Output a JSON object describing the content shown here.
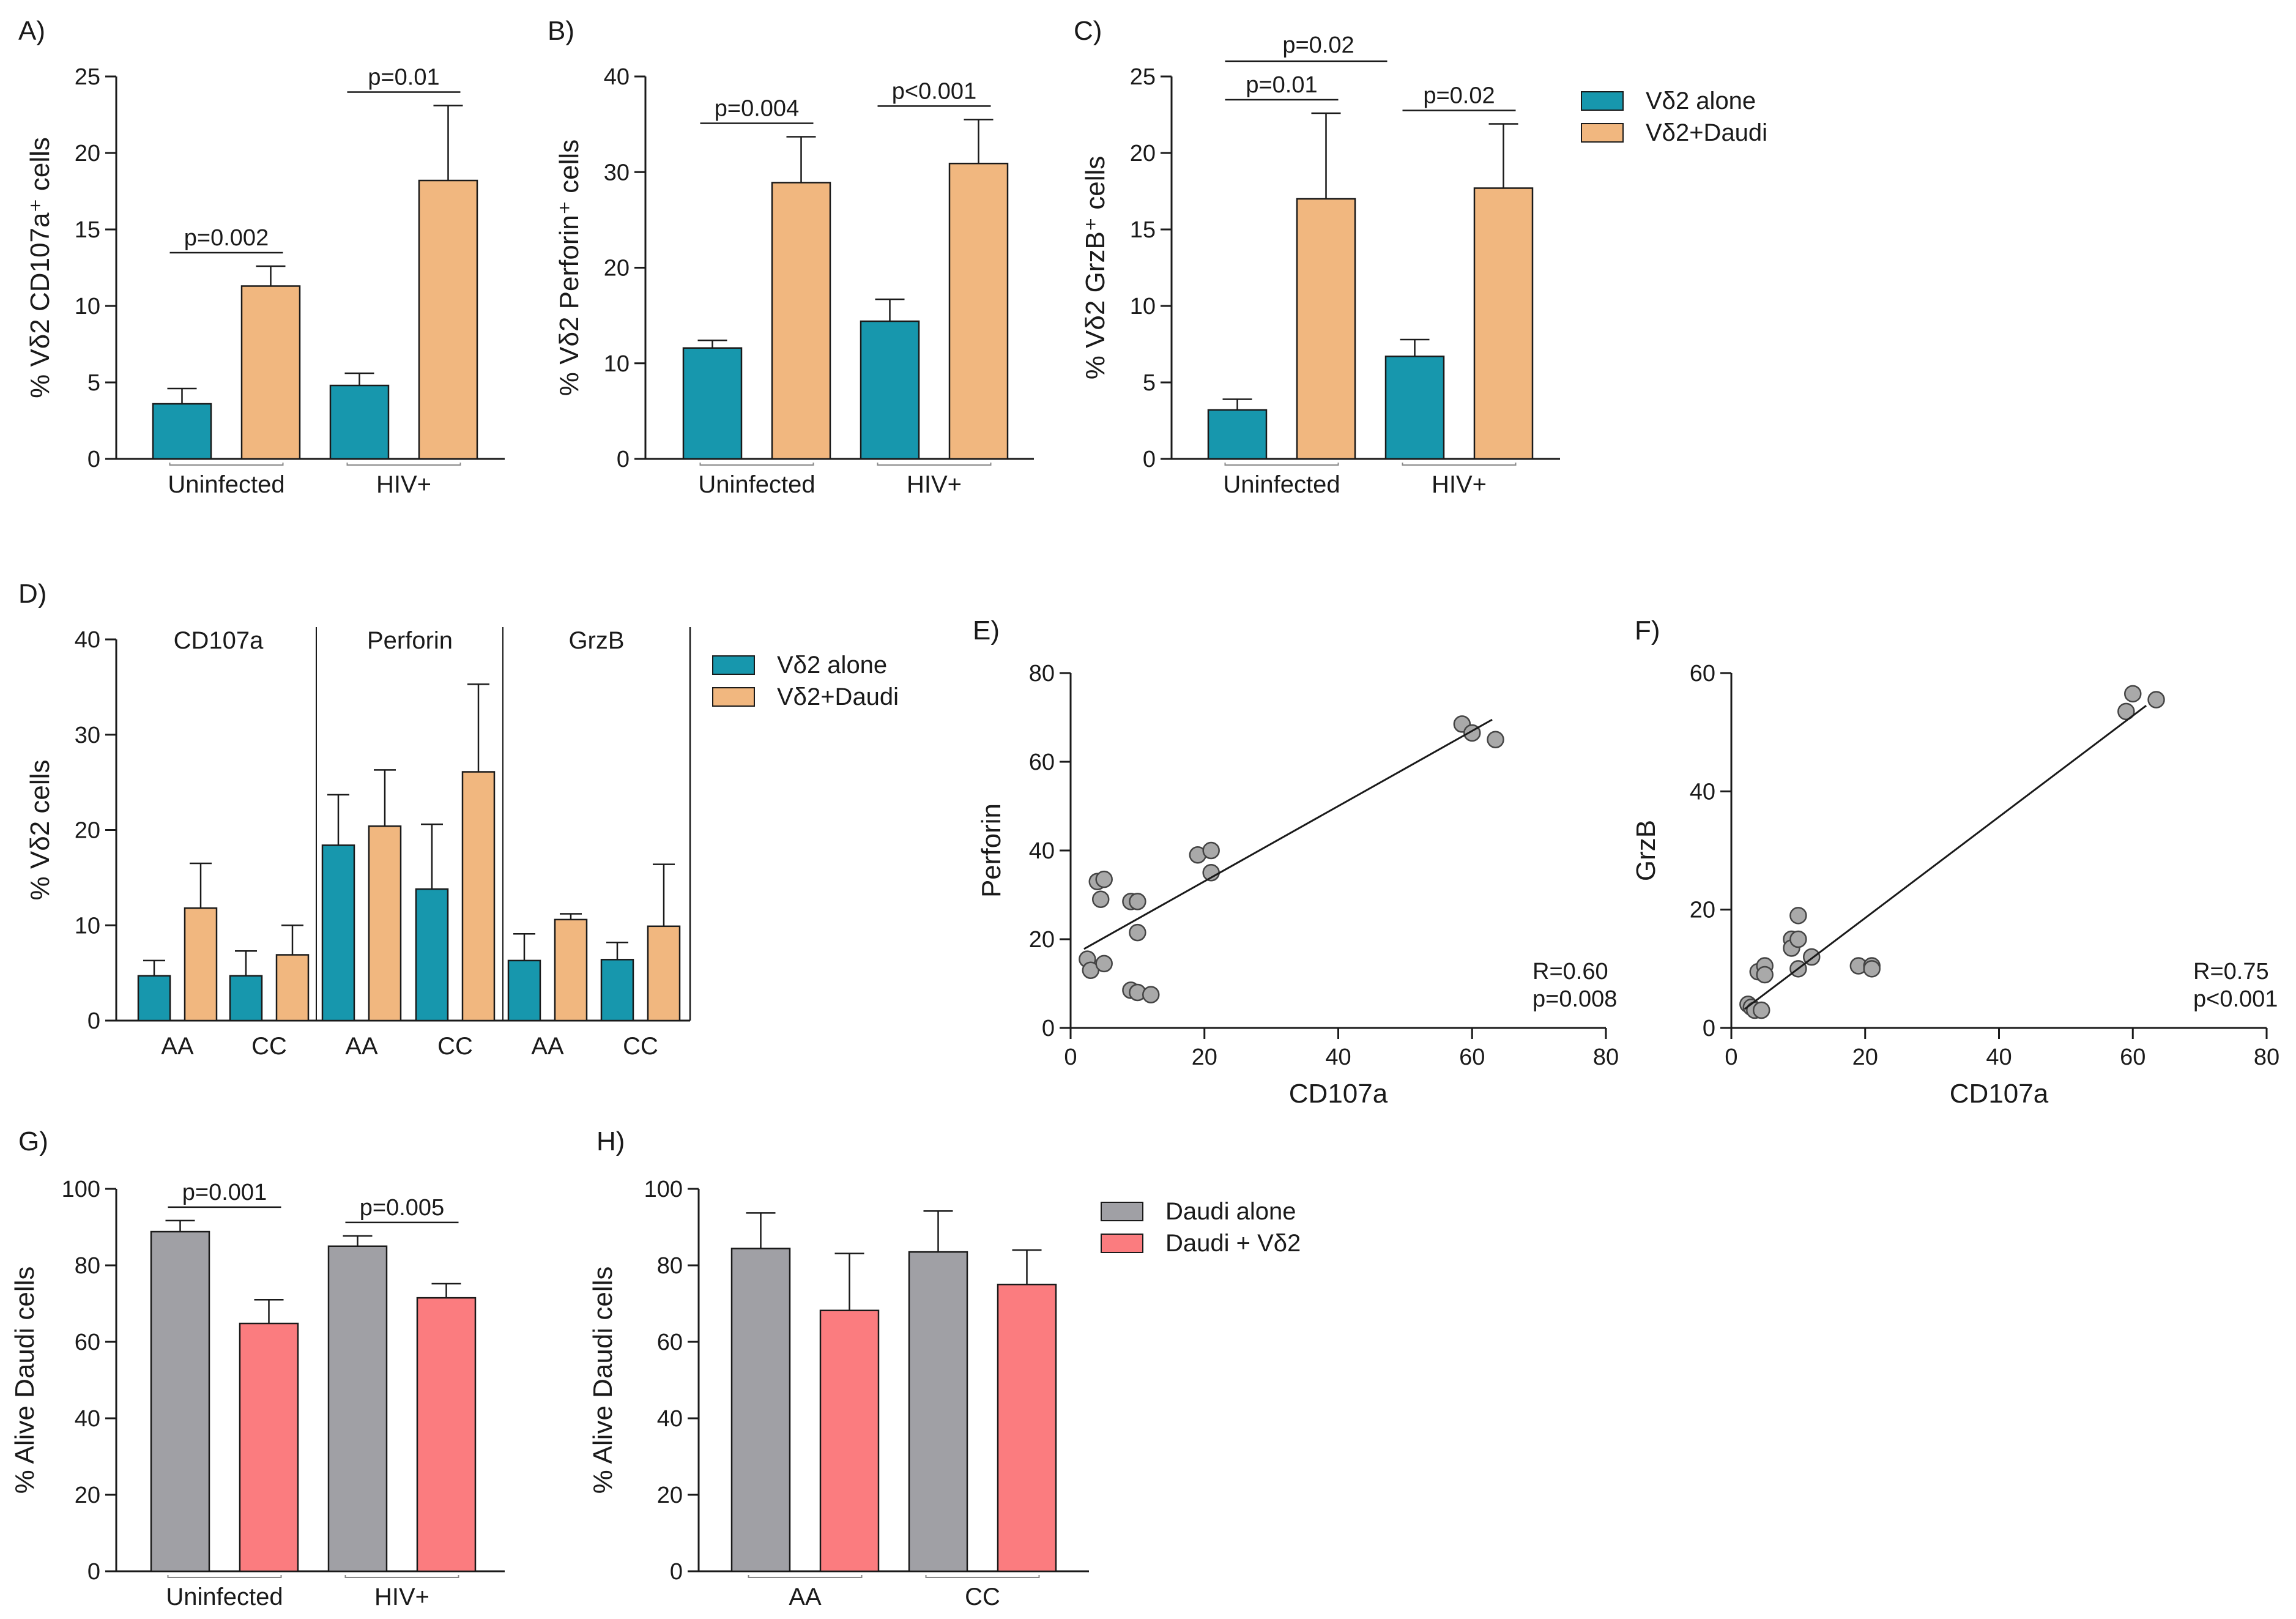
{
  "colors": {
    "teal": "#1797ad",
    "peach": "#f1b77f",
    "gray": "#a0a0a5",
    "salmon": "#fb7c7f",
    "dot": "#a9a9a9",
    "ink": "#1a1a1a"
  },
  "legend_top": [
    "Vδ2 alone",
    "Vδ2+Daudi"
  ],
  "legend_d": [
    "Vδ2 alone",
    "Vδ2+Daudi"
  ],
  "legend_g": [
    "Daudi alone",
    "Daudi + Vδ2"
  ],
  "chart_data": [
    {
      "id": "A",
      "panel": "A)",
      "type": "bar",
      "ylabel": "% Vδ2 CD107a⁺ cells",
      "ylim": [
        0,
        25
      ],
      "yticks": [
        0,
        5,
        10,
        15,
        20,
        25
      ],
      "categories": [
        "Uninfected",
        "HIV+"
      ],
      "series": [
        {
          "name": "Vδ2 alone",
          "color": "teal",
          "values": [
            3.6,
            4.8
          ],
          "errors": [
            1.0,
            0.8
          ]
        },
        {
          "name": "Vδ2+Daudi",
          "color": "peach",
          "values": [
            11.3,
            18.2
          ],
          "errors": [
            1.3,
            4.9
          ]
        }
      ],
      "pvalues": [
        {
          "group": 0,
          "text": "p=0.002"
        },
        {
          "group": 1,
          "text": "p=0.01"
        }
      ]
    },
    {
      "id": "B",
      "panel": "B)",
      "type": "bar",
      "ylabel": "% Vδ2 Perforin⁺ cells",
      "ylim": [
        0,
        40
      ],
      "yticks": [
        0,
        10,
        20,
        30,
        40
      ],
      "categories": [
        "Uninfected",
        "HIV+"
      ],
      "series": [
        {
          "name": "Vδ2 alone",
          "color": "teal",
          "values": [
            11.6,
            14.4
          ],
          "errors": [
            0.8,
            2.3
          ]
        },
        {
          "name": "Vδ2+Daudi",
          "color": "peach",
          "values": [
            28.9,
            30.9
          ],
          "errors": [
            4.8,
            4.6
          ]
        }
      ],
      "pvalues": [
        {
          "group": 0,
          "text": "p=0.004"
        },
        {
          "group": 1,
          "text": "p<0.001"
        }
      ]
    },
    {
      "id": "C",
      "panel": "C)",
      "type": "bar",
      "ylabel": "% Vδ2 GrzB⁺ cells",
      "ylim": [
        0,
        25
      ],
      "yticks": [
        0,
        5,
        10,
        15,
        20,
        25
      ],
      "categories": [
        "Uninfected",
        "HIV+"
      ],
      "series": [
        {
          "name": "Vδ2 alone",
          "color": "teal",
          "values": [
            3.2,
            6.7
          ],
          "errors": [
            0.7,
            1.1
          ]
        },
        {
          "name": "Vδ2+Daudi",
          "color": "peach",
          "values": [
            17.0,
            17.7
          ],
          "errors": [
            5.6,
            4.2
          ]
        }
      ],
      "pvalues": [
        {
          "group": 0,
          "text": "p=0.01"
        },
        {
          "group": 1,
          "text": "p=0.02"
        }
      ],
      "span_pvalue": "p=0.02"
    },
    {
      "id": "D",
      "panel": "D)",
      "type": "bar",
      "ylabel": "% Vδ2 cells",
      "ylim": [
        0,
        40
      ],
      "yticks": [
        0,
        10,
        20,
        30,
        40
      ],
      "sections": [
        "CD107a",
        "Perforin",
        "GrzB"
      ],
      "categories": [
        "AA",
        "CC",
        "AA",
        "CC",
        "AA",
        "CC"
      ],
      "series": [
        {
          "name": "Vδ2 alone",
          "color": "teal",
          "values": [
            4.7,
            4.7,
            18.4,
            13.8,
            6.3,
            6.4
          ],
          "errors": [
            1.6,
            2.6,
            5.3,
            6.8,
            2.8,
            1.8
          ]
        },
        {
          "name": "Vδ2+Daudi",
          "color": "peach",
          "values": [
            11.8,
            6.9,
            20.4,
            26.1,
            10.6,
            9.9
          ],
          "errors": [
            4.7,
            3.1,
            5.9,
            9.2,
            0.6,
            6.5
          ]
        }
      ]
    },
    {
      "id": "E",
      "panel": "E)",
      "type": "scatter",
      "xlabel": "CD107a",
      "ylabel": "Perforin",
      "xlim": [
        0,
        80
      ],
      "ylim": [
        0,
        80
      ],
      "xticks": [
        0,
        20,
        40,
        60,
        80
      ],
      "yticks": [
        0,
        20,
        40,
        60,
        80
      ],
      "points": [
        [
          2.5,
          15.5
        ],
        [
          3,
          13
        ],
        [
          4,
          33
        ],
        [
          5,
          33.5
        ],
        [
          4.5,
          29
        ],
        [
          5,
          14.5
        ],
        [
          9,
          28.5
        ],
        [
          10,
          28.5
        ],
        [
          10,
          21.5
        ],
        [
          9,
          8.5
        ],
        [
          10,
          8
        ],
        [
          12,
          7.5
        ],
        [
          19,
          39
        ],
        [
          21,
          40
        ],
        [
          21,
          35
        ],
        [
          58.5,
          68.5
        ],
        [
          60,
          66.5
        ],
        [
          63.5,
          65
        ]
      ],
      "fit": [
        [
          2,
          17.8
        ],
        [
          63,
          69.5
        ]
      ],
      "r_text": "R=0.60",
      "p_text": "p=0.008"
    },
    {
      "id": "F",
      "panel": "F)",
      "type": "scatter",
      "xlabel": "CD107a",
      "ylabel": "GrzB",
      "xlim": [
        0,
        80
      ],
      "ylim": [
        0,
        60
      ],
      "xticks": [
        0,
        20,
        40,
        60,
        80
      ],
      "yticks": [
        0,
        20,
        40,
        60
      ],
      "points": [
        [
          2.5,
          4
        ],
        [
          3,
          3.5
        ],
        [
          3.5,
          3
        ],
        [
          4,
          9.5
        ],
        [
          5,
          10.5
        ],
        [
          4.5,
          3
        ],
        [
          5,
          9
        ],
        [
          9,
          15
        ],
        [
          9,
          13.5
        ],
        [
          10,
          19
        ],
        [
          10,
          15
        ],
        [
          10,
          10
        ],
        [
          12,
          12
        ],
        [
          19,
          10.5
        ],
        [
          21,
          10.5
        ],
        [
          21,
          10
        ],
        [
          59,
          53.5
        ],
        [
          60,
          56.5
        ],
        [
          63.5,
          55.5
        ]
      ],
      "fit": [
        [
          2,
          3.2
        ],
        [
          62,
          54.5
        ]
      ],
      "r_text": "R=0.75",
      "p_text": "p<0.001"
    },
    {
      "id": "G",
      "panel": "G)",
      "type": "bar",
      "ylabel": "% Alive Daudi cells",
      "ylim": [
        0,
        100
      ],
      "yticks": [
        0,
        20,
        40,
        60,
        80,
        100
      ],
      "categories": [
        "Uninfected",
        "HIV+"
      ],
      "series": [
        {
          "name": "Daudi alone",
          "color": "gray",
          "values": [
            88.8,
            85.0
          ],
          "errors": [
            2.9,
            2.7
          ]
        },
        {
          "name": "Daudi + Vδ2",
          "color": "salmon",
          "values": [
            64.8,
            71.5
          ],
          "errors": [
            6.2,
            3.7
          ]
        }
      ],
      "pvalues": [
        {
          "group": 0,
          "text": "p=0.001"
        },
        {
          "group": 1,
          "text": "p=0.005"
        }
      ]
    },
    {
      "id": "H",
      "panel": "H)",
      "type": "bar",
      "ylabel": "% Alive Daudi cells",
      "ylim": [
        0,
        100
      ],
      "yticks": [
        0,
        20,
        40,
        60,
        80,
        100
      ],
      "categories": [
        "AA",
        "CC"
      ],
      "series": [
        {
          "name": "Daudi alone",
          "color": "gray",
          "values": [
            84.4,
            83.5
          ],
          "errors": [
            9.3,
            10.7
          ]
        },
        {
          "name": "Daudi + Vδ2",
          "color": "salmon",
          "values": [
            68.2,
            75.0
          ],
          "errors": [
            14.9,
            9.0
          ]
        }
      ]
    }
  ]
}
